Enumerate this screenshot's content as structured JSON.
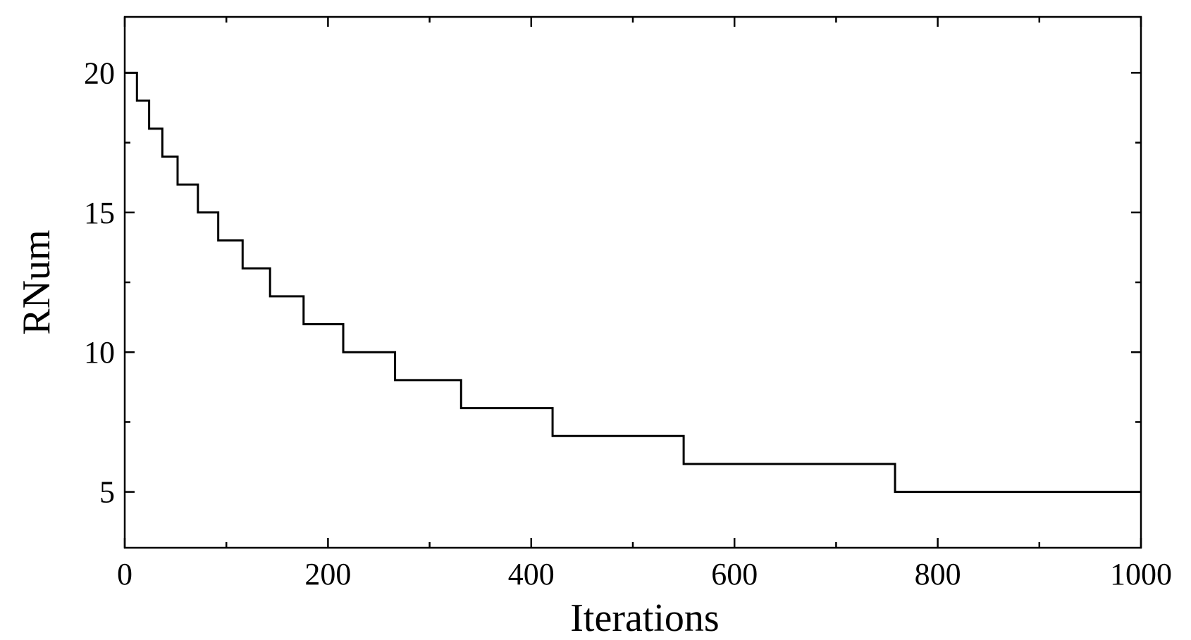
{
  "chart_data": {
    "type": "line",
    "step": true,
    "title": "",
    "xlabel": "Iterations",
    "ylabel": "RNum",
    "xlim": [
      0,
      1000
    ],
    "ylim": [
      3,
      22
    ],
    "xticks": [
      0,
      200,
      400,
      600,
      800,
      1000
    ],
    "xtick_labels": [
      "0",
      "200",
      "400",
      "600",
      "800",
      "1000"
    ],
    "yticks": [
      5,
      10,
      15,
      20
    ],
    "ytick_labels": [
      "5",
      "10",
      "15",
      "20"
    ],
    "grid": false,
    "line_color": "#000000",
    "series": [
      {
        "x": [
          0,
          12,
          24,
          37,
          52,
          72,
          92,
          116,
          143,
          176,
          215,
          266,
          331,
          421,
          550,
          758,
          1000
        ],
        "y": [
          20,
          19,
          18,
          17,
          16,
          15,
          14,
          13,
          12,
          11,
          10,
          9,
          8,
          7,
          6,
          5,
          5
        ]
      }
    ]
  }
}
